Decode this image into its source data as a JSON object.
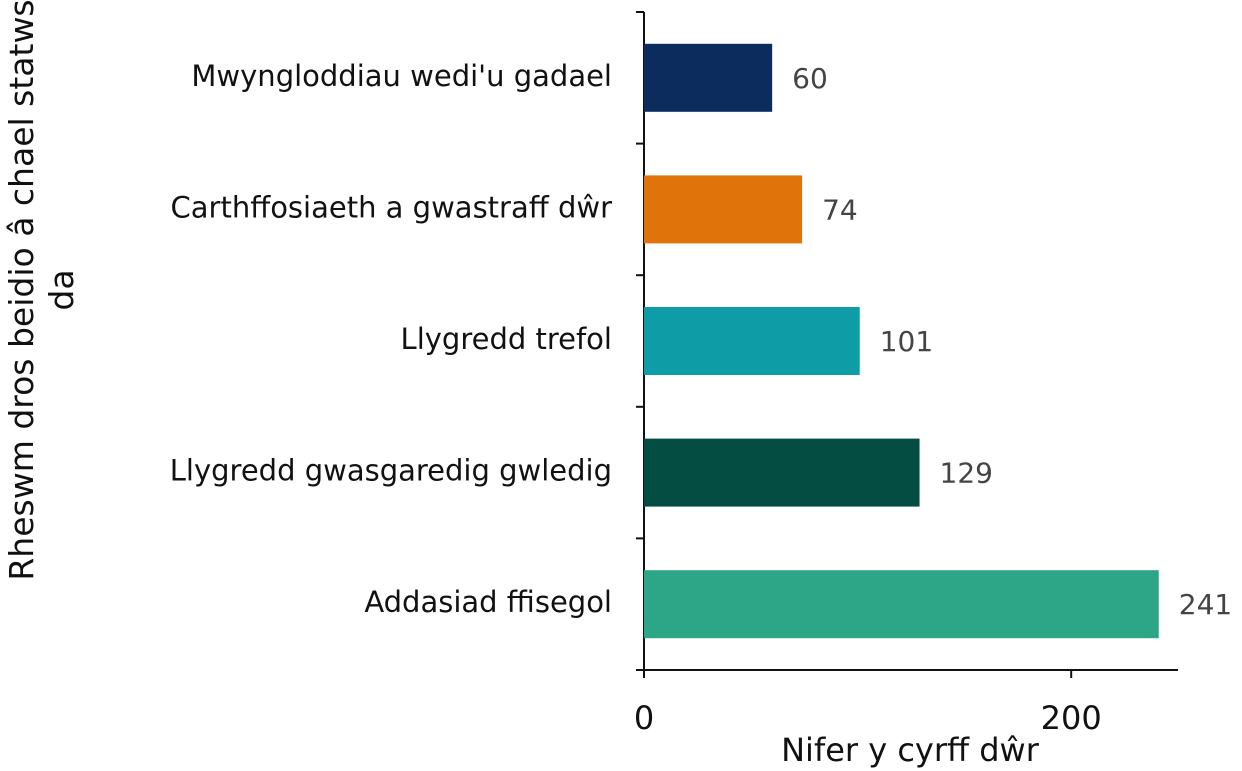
{
  "chart_data": {
    "type": "barh",
    "categories": [
      "Mwyngloddiau wedi'u gadael",
      "Carthffosiaeth a gwastraff dŵr",
      "Llygredd trefol",
      "Llygredd gwasgaredig gwledig",
      "Addasiad ffisegol"
    ],
    "values": [
      60,
      74,
      101,
      129,
      241
    ],
    "colors": [
      "#0b2c5c",
      "#e0740a",
      "#0e9ca6",
      "#034d42",
      "#2ca686"
    ],
    "xlim": [
      0,
      250
    ],
    "xticks": [
      0,
      200
    ],
    "xlabel": "Nifer y cyrff dŵr",
    "ylabel": "Rheswm dros beidio â chael statws da"
  }
}
